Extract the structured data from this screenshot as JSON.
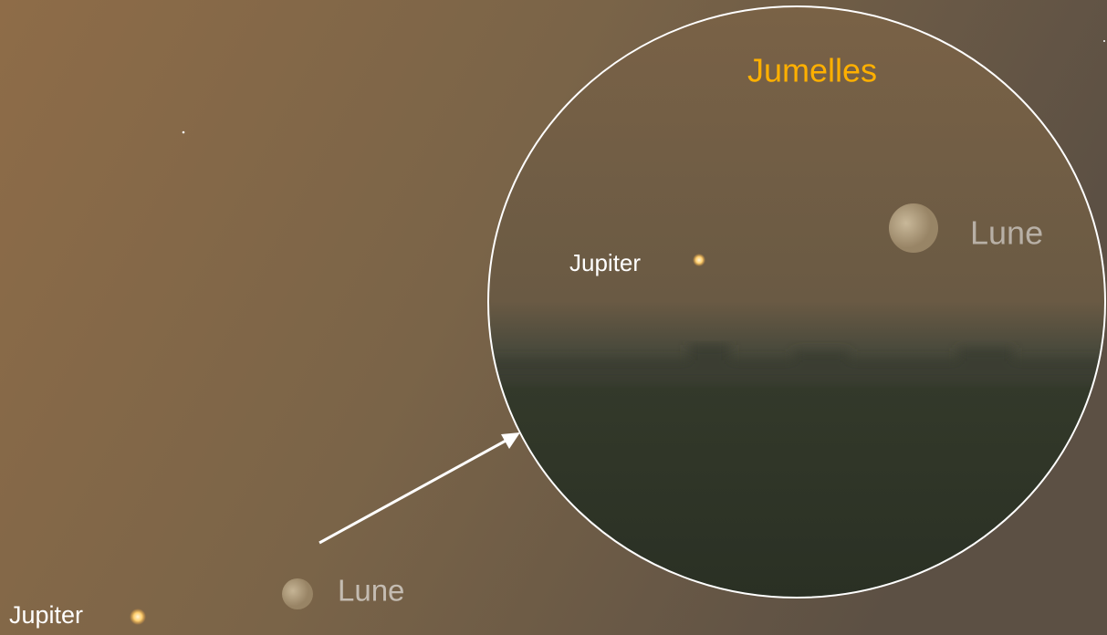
{
  "sky": {
    "jupiter_label": "Jupiter",
    "moon_label": "Lune"
  },
  "binocular_view": {
    "title": "Jumelles",
    "jupiter_label": "Jupiter",
    "moon_label": "Lune"
  }
}
